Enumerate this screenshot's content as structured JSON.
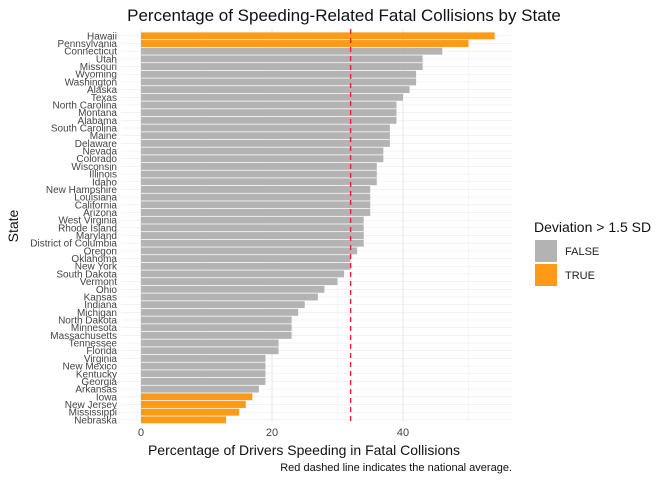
{
  "chart_data": {
    "type": "bar",
    "orientation": "horizontal",
    "title": "Percentage of Speeding-Related Fatal Collisions by State",
    "xlabel": "Percentage of Drivers Speeding in Fatal Collisions",
    "ylabel": "State",
    "xlim": [
      0,
      55
    ],
    "x_ticks": [
      0,
      20,
      40
    ],
    "grid": true,
    "caption": "Red dashed line indicates the national average.",
    "reference_line": {
      "value": 32,
      "style": "dashed",
      "color": "#ee2222"
    },
    "legend": {
      "title": "Deviation > 1.5 SD",
      "position": "right",
      "entries": [
        {
          "label": "FALSE",
          "color": "#b3b3b3"
        },
        {
          "label": "TRUE",
          "color": "#ff9a16"
        }
      ]
    },
    "categories": [
      "Hawaii",
      "Pennsylvania",
      "Connecticut",
      "Utah",
      "Missouri",
      "Wyoming",
      "Washington",
      "Alaska",
      "Texas",
      "North Carolina",
      "Montana",
      "Alabama",
      "South Carolina",
      "Maine",
      "Delaware",
      "Nevada",
      "Colorado",
      "Wisconsin",
      "Illinois",
      "Idaho",
      "New Hampshire",
      "Louisiana",
      "California",
      "Arizona",
      "West Virginia",
      "Rhode Island",
      "Maryland",
      "District of Columbia",
      "Oregon",
      "Oklahoma",
      "New York",
      "South Dakota",
      "Vermont",
      "Ohio",
      "Kansas",
      "Indiana",
      "Michigan",
      "North Dakota",
      "Minnesota",
      "Massachusetts",
      "Tennessee",
      "Florida",
      "Virginia",
      "New Mexico",
      "Kentucky",
      "Georgia",
      "Arkansas",
      "Iowa",
      "New Jersey",
      "Mississippi",
      "Nebraska"
    ],
    "values": [
      54,
      50,
      46,
      43,
      43,
      42,
      42,
      41,
      40,
      39,
      39,
      39,
      38,
      38,
      38,
      37,
      37,
      36,
      36,
      36,
      35,
      35,
      35,
      35,
      34,
      34,
      34,
      34,
      33,
      32,
      32,
      31,
      30,
      28,
      27,
      25,
      24,
      23,
      23,
      23,
      21,
      21,
      19,
      19,
      19,
      19,
      18,
      17,
      16,
      15,
      13
    ],
    "flags": [
      "TRUE",
      "TRUE",
      "FALSE",
      "FALSE",
      "FALSE",
      "FALSE",
      "FALSE",
      "FALSE",
      "FALSE",
      "FALSE",
      "FALSE",
      "FALSE",
      "FALSE",
      "FALSE",
      "FALSE",
      "FALSE",
      "FALSE",
      "FALSE",
      "FALSE",
      "FALSE",
      "FALSE",
      "FALSE",
      "FALSE",
      "FALSE",
      "FALSE",
      "FALSE",
      "FALSE",
      "FALSE",
      "FALSE",
      "FALSE",
      "FALSE",
      "FALSE",
      "FALSE",
      "FALSE",
      "FALSE",
      "FALSE",
      "FALSE",
      "FALSE",
      "FALSE",
      "FALSE",
      "FALSE",
      "FALSE",
      "FALSE",
      "FALSE",
      "FALSE",
      "FALSE",
      "FALSE",
      "TRUE",
      "TRUE",
      "TRUE",
      "TRUE"
    ]
  }
}
